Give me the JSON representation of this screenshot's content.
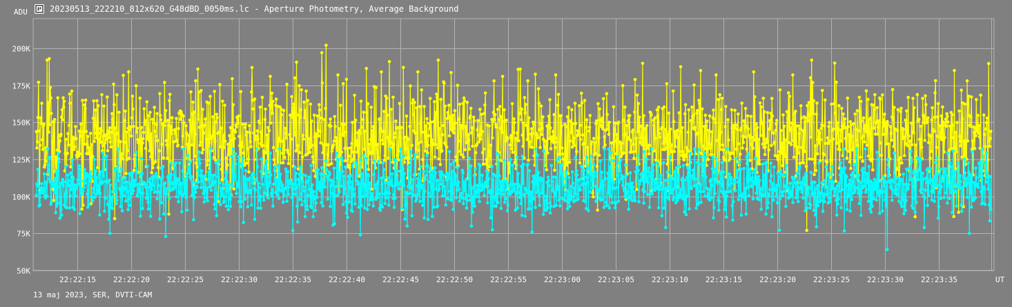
{
  "window": {
    "title": "20230513_222210_812x620_G48dBD_0050ms.lc - Aperture Photometry, Average Background",
    "icon": "camera-app-icon"
  },
  "footer": {
    "text": "13 maj 2023, SER, DVTI-CAM"
  },
  "chart_data": {
    "type": "line",
    "ylabel": "ADU",
    "xlabel": "UT",
    "ylim": [
      50000,
      220000
    ],
    "y_ticks": [
      {
        "value": 50000,
        "label": "50K"
      },
      {
        "value": 75000,
        "label": "75K"
      },
      {
        "value": 100000,
        "label": "100K"
      },
      {
        "value": 125000,
        "label": "125K"
      },
      {
        "value": 150000,
        "label": "150K"
      },
      {
        "value": 175000,
        "label": "175K"
      },
      {
        "value": 200000,
        "label": "200K"
      }
    ],
    "x_ticks": [
      "22:22:15",
      "22:22:20",
      "22:22:25",
      "22:22:30",
      "22:22:35",
      "22:22:40",
      "22:22:45",
      "22:22:50",
      "22:22:55",
      "22:23:00",
      "22:23:05",
      "22:23:10",
      "22:23:15",
      "22:23:20",
      "22:23:25",
      "22:23:30",
      "22:23:35"
    ],
    "xlim_seconds": [
      10.9,
      100.1
    ],
    "x_tick_seconds_start": 15,
    "x_tick_step_seconds": 5,
    "grid": true,
    "colors": {
      "series_yellow": "#ffff00",
      "series_cyan": "#00ffff",
      "grid": "#b4b4b4",
      "background": "#808080"
    },
    "series": [
      {
        "color": "#ffff00",
        "mean": 140000,
        "spread": 20000,
        "min": 77000,
        "max": 202000,
        "peaks": [
          [
            11.4,
            177000
          ],
          [
            12.2,
            192000
          ],
          [
            12.4,
            193000
          ],
          [
            15.8,
            165000
          ],
          [
            26.2,
            186000
          ],
          [
            31.2,
            187000
          ],
          [
            32.9,
            181000
          ],
          [
            35.2,
            180000
          ],
          [
            37.7,
            197000
          ],
          [
            38.1,
            202000
          ],
          [
            39.2,
            182000
          ],
          [
            43.2,
            184000
          ],
          [
            46.6,
            184000
          ],
          [
            48.5,
            192000
          ],
          [
            53.7,
            178000
          ],
          [
            56.8,
            178000
          ],
          [
            59.4,
            182000
          ],
          [
            74.3,
            182000
          ],
          [
            77.8,
            184000
          ],
          [
            81.4,
            182000
          ],
          [
            85.3,
            190000
          ],
          [
            97.6,
            178000
          ],
          [
            82.7,
            77000
          ],
          [
            16.3,
            95000
          ]
        ]
      },
      {
        "color": "#00ffff",
        "mean": 107000,
        "spread": 12000,
        "min": 64000,
        "max": 142000,
        "dips": [
          [
            18.0,
            75000
          ],
          [
            23.2,
            73000
          ],
          [
            35.0,
            77000
          ],
          [
            41.3,
            74000
          ],
          [
            57.2,
            76000
          ],
          [
            90.2,
            64000
          ],
          [
            97.8,
            75000
          ],
          [
            93.6,
            79000
          ],
          [
            69.6,
            79000
          ],
          [
            45.6,
            80000
          ]
        ]
      }
    ],
    "samples_per_series": 1780
  }
}
